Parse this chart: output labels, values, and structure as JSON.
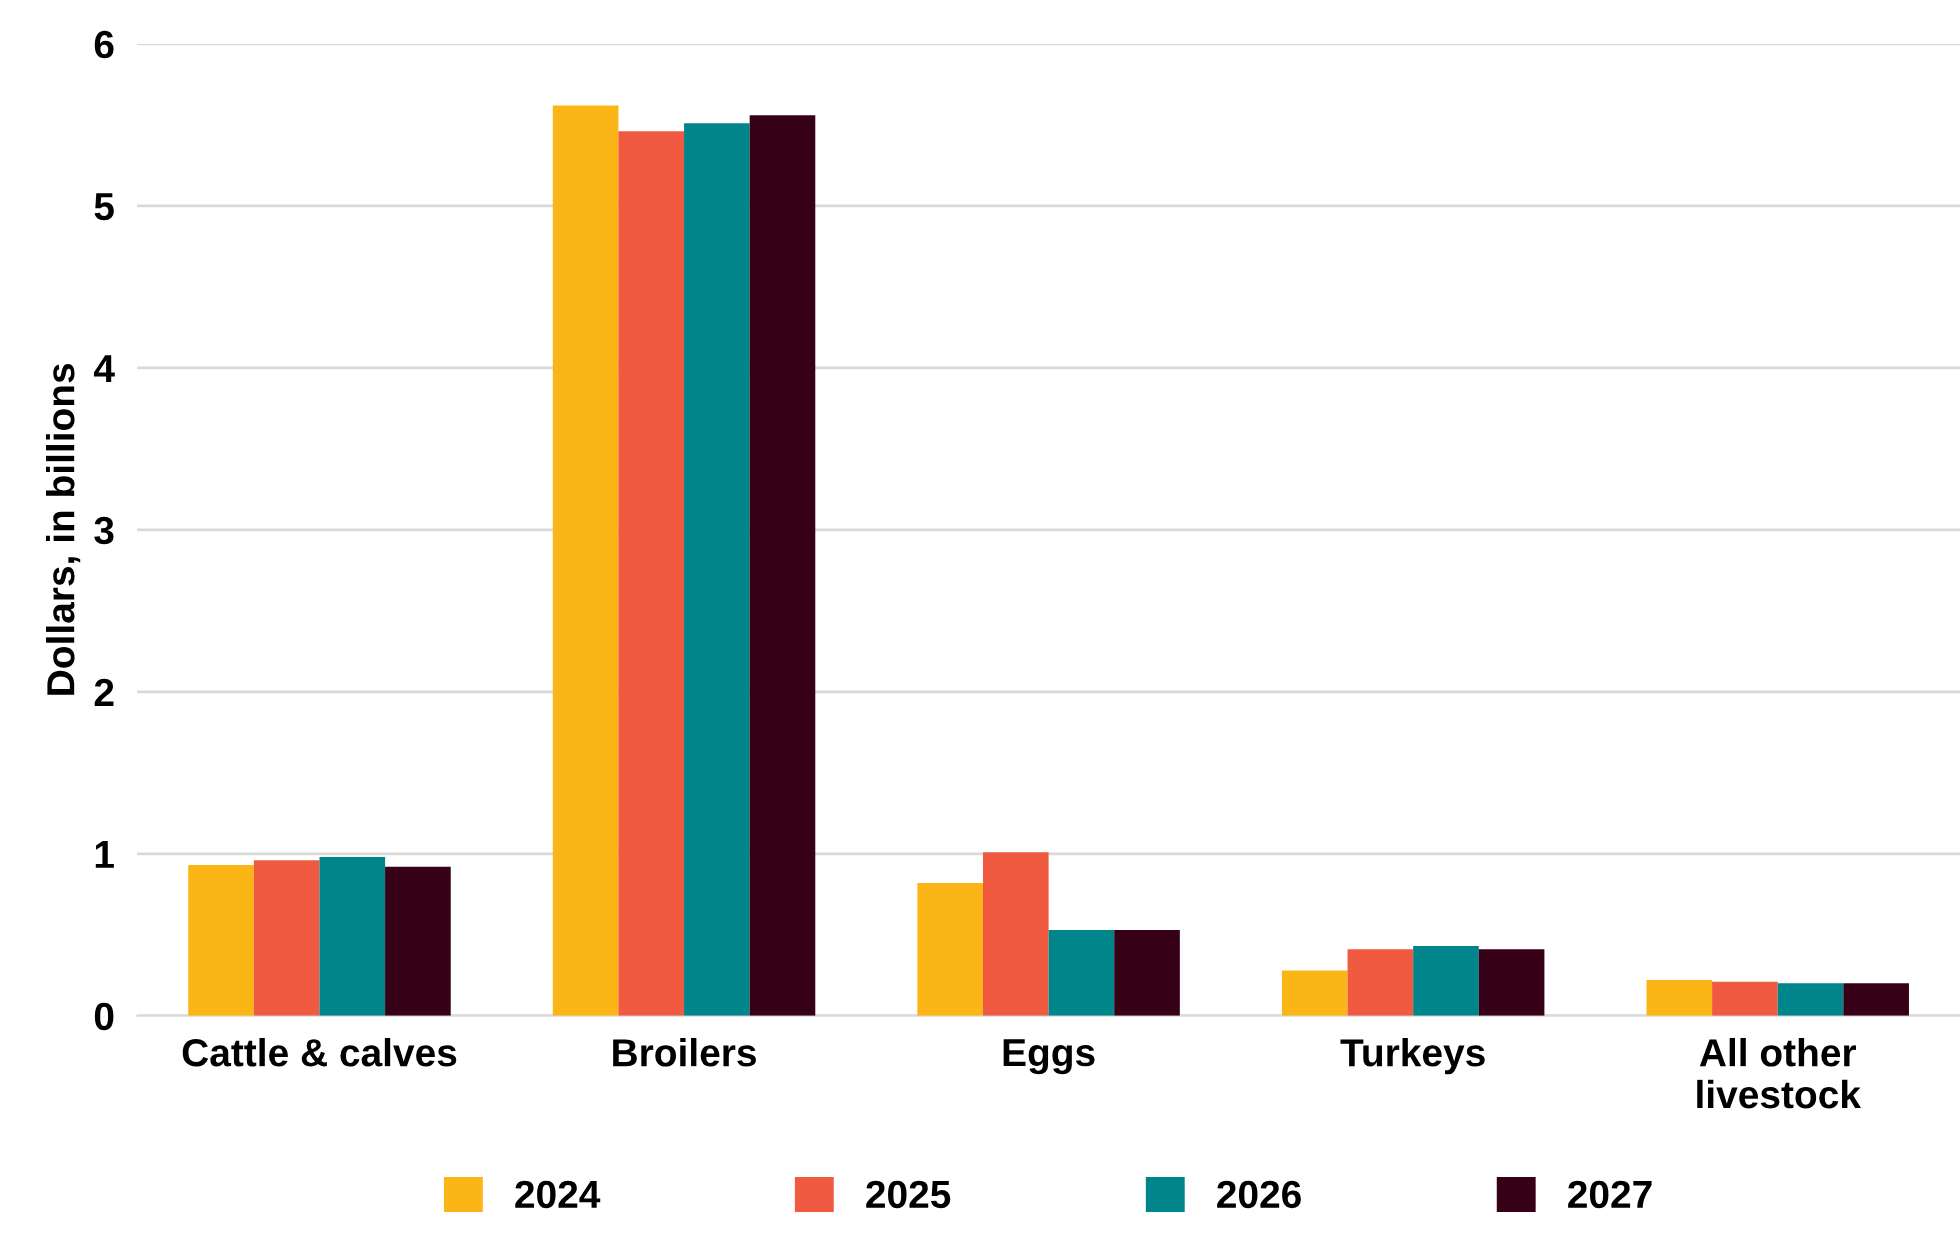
{
  "chart_data": {
    "type": "bar",
    "ylabel": "Dollars, in billions",
    "categories": [
      "Cattle & calves",
      "Broilers",
      "Eggs",
      "Turkeys",
      "All other\nlivestock"
    ],
    "series": [
      {
        "name": "2024",
        "color": "#fbb516",
        "values": [
          0.93,
          5.62,
          0.82,
          0.28,
          0.22
        ]
      },
      {
        "name": "2025",
        "color": "#ef5a40",
        "values": [
          0.96,
          5.46,
          1.01,
          0.41,
          0.21
        ]
      },
      {
        "name": "2026",
        "color": "#00868a",
        "values": [
          0.98,
          5.51,
          0.53,
          0.43,
          0.2
        ]
      },
      {
        "name": "2027",
        "color": "#360016",
        "values": [
          0.92,
          5.56,
          0.53,
          0.41,
          0.2
        ]
      }
    ],
    "ylim": [
      0,
      6
    ],
    "yticks": [
      0,
      1,
      2,
      3,
      4,
      5,
      6
    ],
    "grid": "y",
    "legend": "bottom"
  }
}
